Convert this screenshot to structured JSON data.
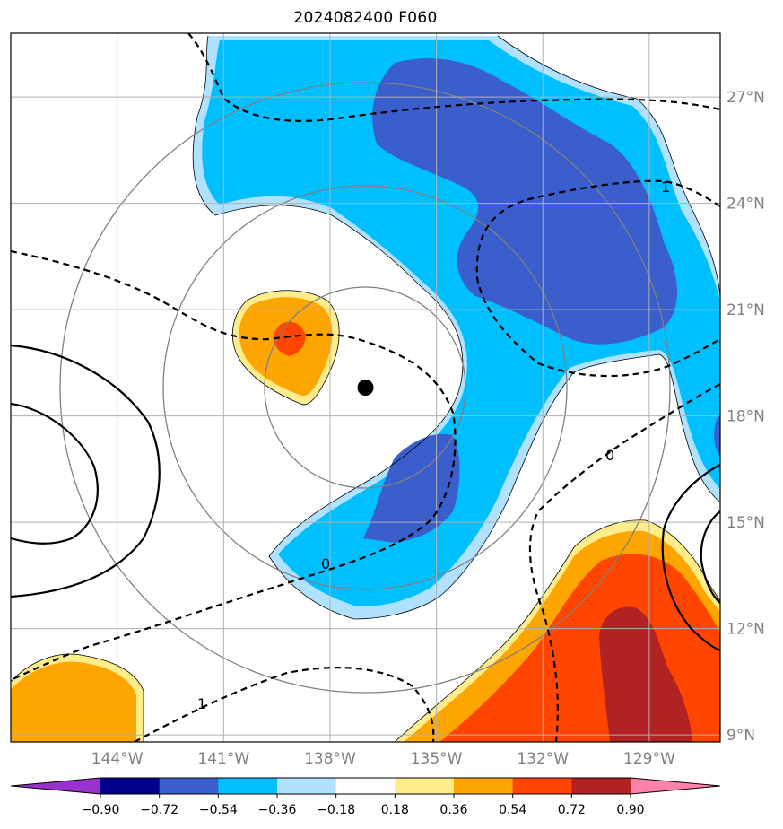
{
  "chart_data": {
    "type": "map-contour",
    "title": "2024082400 F060",
    "lon_ticks": [
      {
        "value": -144,
        "label": "144°W"
      },
      {
        "value": -141,
        "label": "141°W"
      },
      {
        "value": -138,
        "label": "138°W"
      },
      {
        "value": -135,
        "label": "135°W"
      },
      {
        "value": -132,
        "label": "132°W"
      },
      {
        "value": -129,
        "label": "129°W"
      }
    ],
    "lat_ticks": [
      {
        "value": 9,
        "label": "9°N"
      },
      {
        "value": 12,
        "label": "12°N"
      },
      {
        "value": 15,
        "label": "15°N"
      },
      {
        "value": 18,
        "label": "18°N"
      },
      {
        "value": 21,
        "label": "21°N"
      },
      {
        "value": 24,
        "label": "24°N"
      },
      {
        "value": 27,
        "label": "27°N"
      }
    ],
    "xlim": [
      -147,
      -127
    ],
    "ylim": [
      8.8,
      28.8
    ],
    "grid": true,
    "center_marker": {
      "lon": -137.0,
      "lat": 18.8
    },
    "range_rings_deg": [
      2.8,
      5.5,
      8.5
    ],
    "colorbar": {
      "levels": [
        "−0.90",
        "−0.72",
        "−0.54",
        "−0.36",
        "−0.18",
        "0.18",
        "0.36",
        "0.54",
        "0.72",
        "0.90"
      ],
      "colors": [
        "#9932CC",
        "#00008B",
        "#3A5FCD",
        "#00BFFF",
        "#B0E2FF",
        "#FFFFFF",
        "#FFEC8B",
        "#FFA500",
        "#FF4500",
        "#B22222",
        "#FF82AB"
      ],
      "extend": "both"
    },
    "contour_labels": [
      "1",
      "0",
      "0",
      "1"
    ]
  }
}
